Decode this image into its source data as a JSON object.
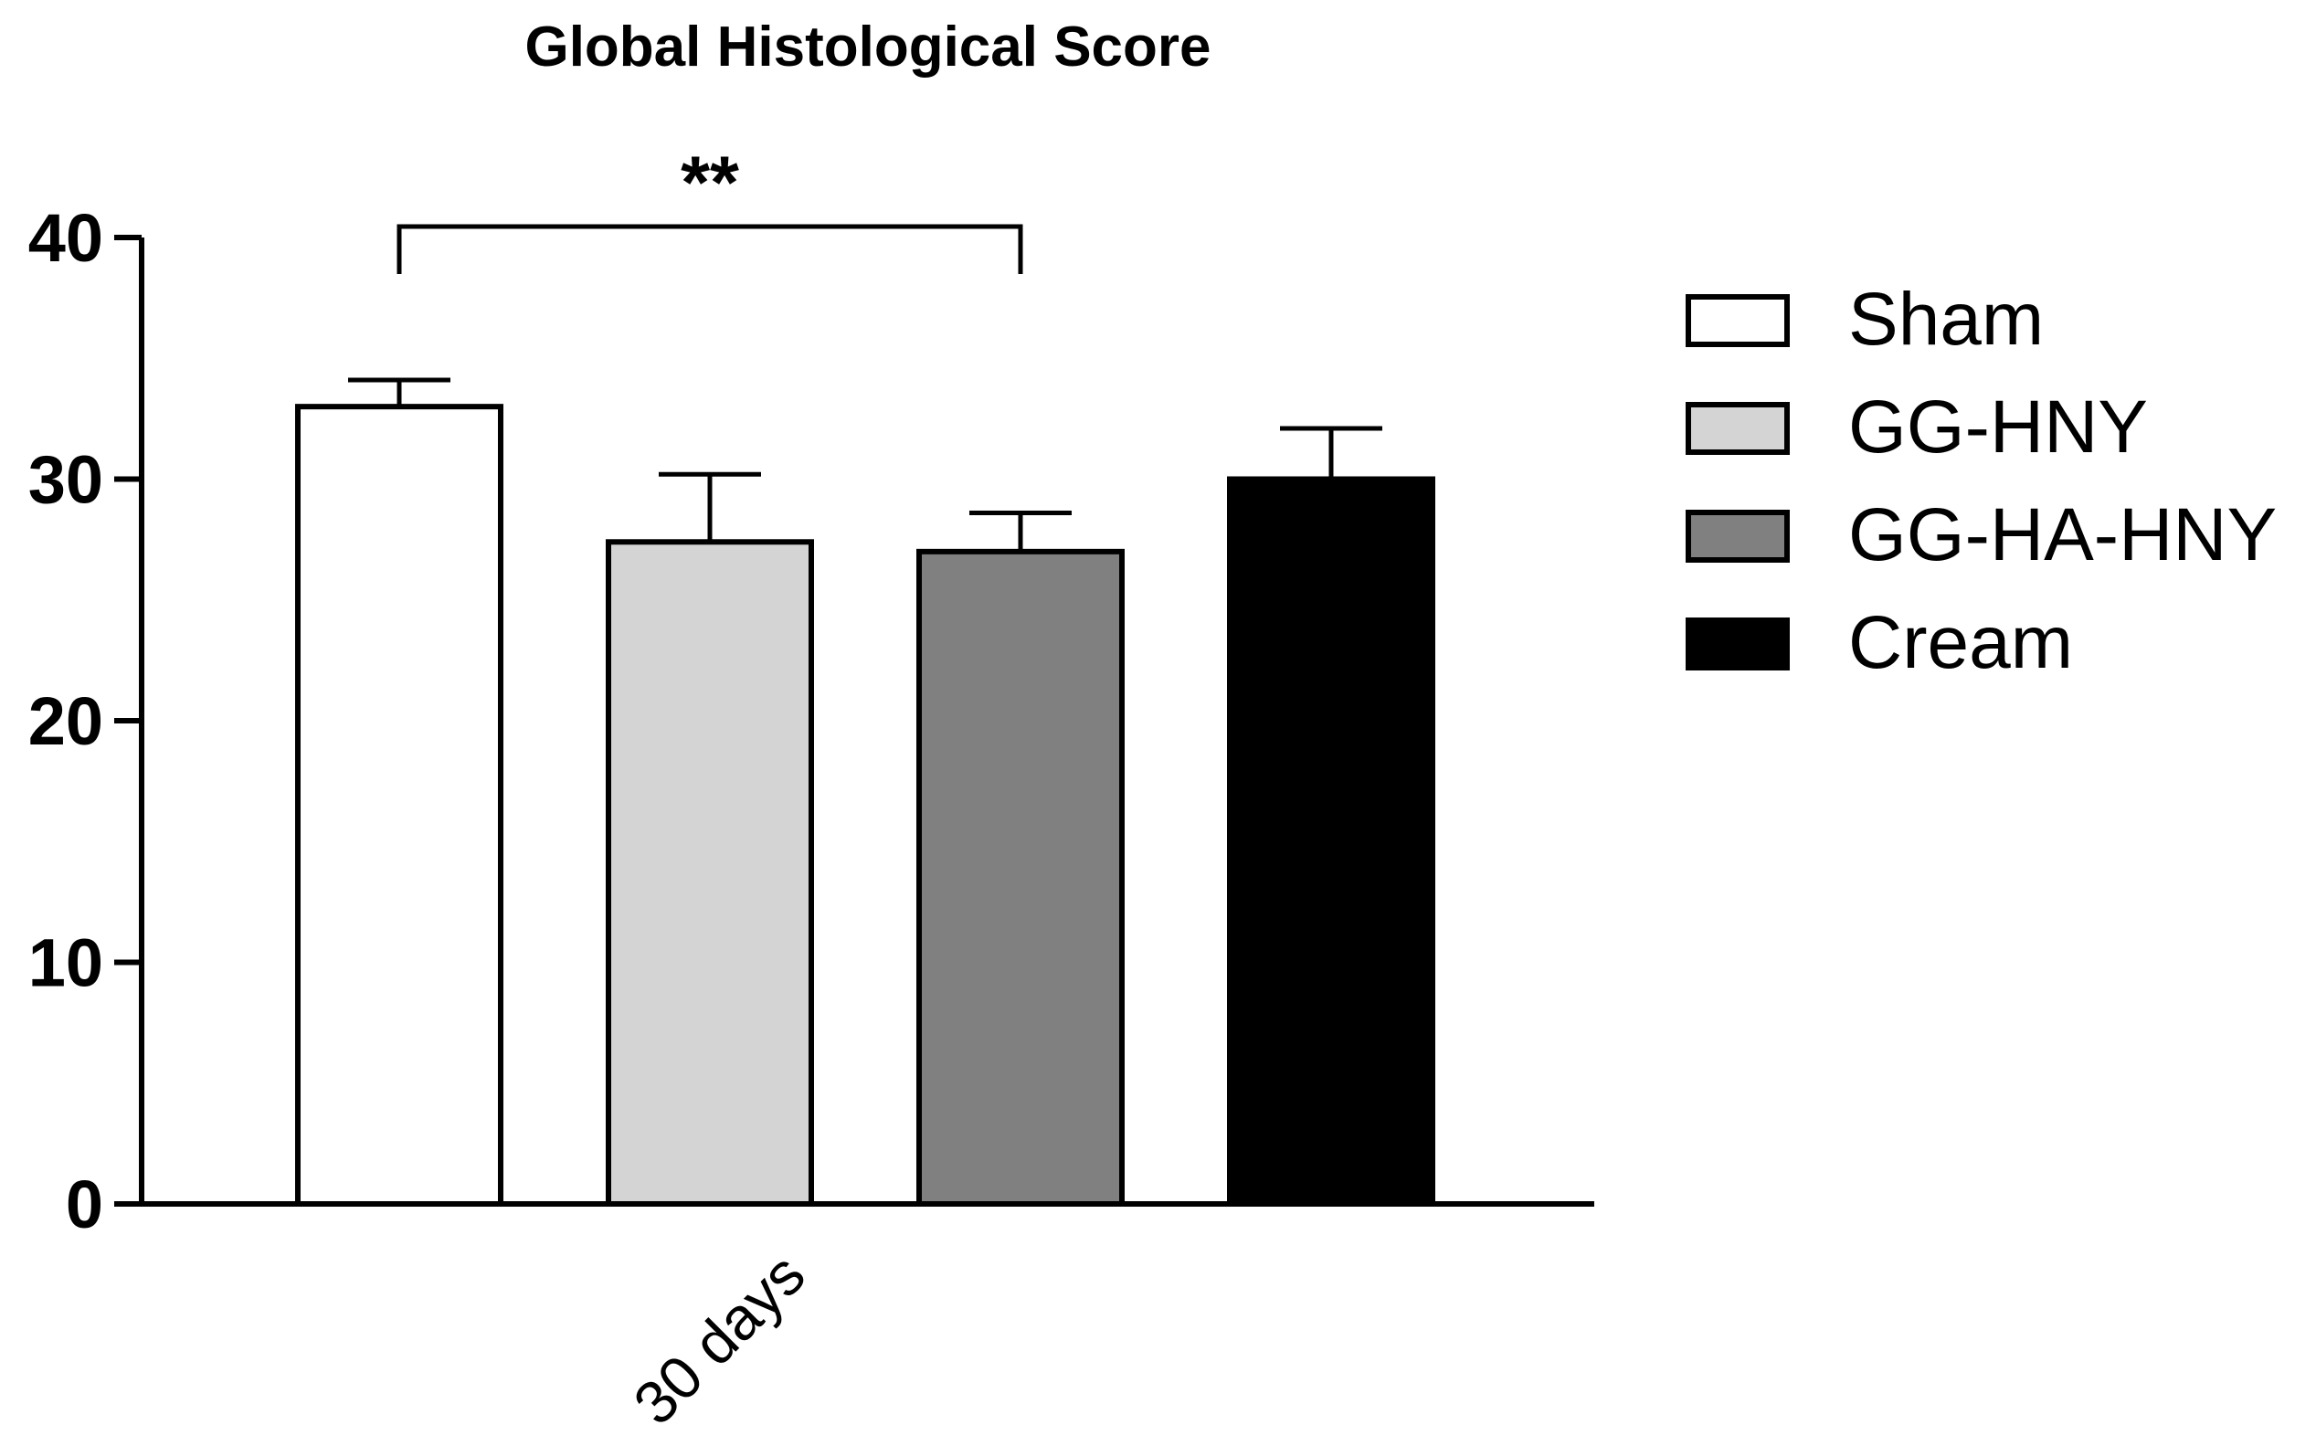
{
  "chart_data": {
    "type": "bar",
    "title": "Global Histological Score",
    "categories": [
      "30 days"
    ],
    "series": [
      {
        "name": "Sham",
        "values": [
          33.0
        ],
        "error": [
          1.1
        ],
        "color": "#ffffff"
      },
      {
        "name": "GG-HNY",
        "values": [
          27.4
        ],
        "error": [
          2.8
        ],
        "color": "#d4d4d4"
      },
      {
        "name": "GG-HA-HNY",
        "values": [
          27.0
        ],
        "error": [
          1.6
        ],
        "color": "#808080"
      },
      {
        "name": "Cream",
        "values": [
          30.0
        ],
        "error": [
          2.1
        ],
        "color": "#000000"
      }
    ],
    "ylim": [
      0,
      40
    ],
    "yticks": [
      "0",
      "10",
      "20",
      "30",
      "40"
    ],
    "significance": {
      "from": "Sham",
      "to": "GG-HA-HNY",
      "label": "**"
    },
    "legend_position": "right",
    "grid": false
  }
}
